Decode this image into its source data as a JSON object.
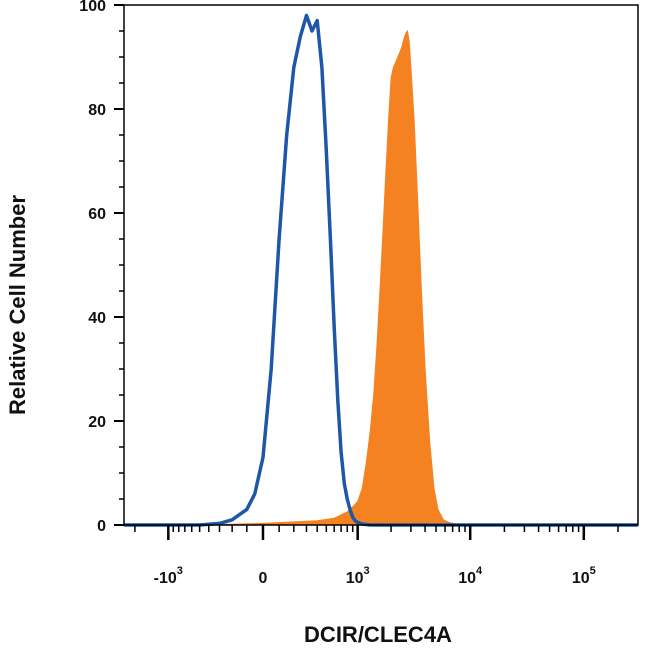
{
  "chart_data": {
    "type": "area",
    "title": "",
    "xlabel": "DCIR/CLEC4A",
    "ylabel": "Relative Cell Number",
    "x_scale": "biexponential",
    "xlim": [
      -2500,
      300000
    ],
    "ylim": [
      0,
      100
    ],
    "y_ticks": [
      0,
      20,
      40,
      60,
      80,
      100
    ],
    "y_tick_labels": [
      "0",
      "20",
      "40",
      "60",
      "80",
      "100"
    ],
    "x_ticks": [
      {
        "value": -1000,
        "base": "-10",
        "exp": "3"
      },
      {
        "value": 0,
        "base": "0",
        "exp": ""
      },
      {
        "value": 1000,
        "base": "10",
        "exp": "3"
      },
      {
        "value": 10000,
        "base": "10",
        "exp": "4"
      },
      {
        "value": 100000,
        "base": "10",
        "exp": "5"
      }
    ],
    "grid": false,
    "legend": "none",
    "series": [
      {
        "style": "filled",
        "color": "#F58220",
        "x": [
          -2500,
          -1000,
          -500,
          0,
          200,
          400,
          600,
          800,
          900,
          1000,
          1100,
          1200,
          1300,
          1400,
          1500,
          1600,
          1700,
          1800,
          1900,
          2000,
          2100,
          2200,
          2300,
          2400,
          2500,
          2600,
          2700,
          2800,
          2900,
          3000,
          3200,
          3400,
          3700,
          4000,
          4400,
          4800,
          5200,
          5800,
          6500,
          8000,
          10000,
          100000,
          300000
        ],
        "y": [
          0,
          0,
          0,
          0.3,
          0.6,
          0.8,
          1.3,
          2.5,
          3.5,
          4.5,
          7,
          12,
          18,
          25,
          35,
          46,
          57,
          68,
          78,
          86,
          88,
          89,
          90,
          91,
          92,
          93.5,
          94.5,
          95,
          93,
          88,
          78,
          65,
          46,
          30,
          16,
          7,
          3,
          1,
          0.5,
          0,
          0,
          0,
          0
        ]
      },
      {
        "style": "outline",
        "color": "#1F57A8",
        "x": [
          -2500,
          -1000,
          -500,
          -300,
          -200,
          -100,
          -50,
          0,
          50,
          100,
          150,
          200,
          250,
          300,
          350,
          400,
          450,
          500,
          550,
          600,
          650,
          700,
          750,
          800,
          850,
          900,
          950,
          1000,
          1100,
          1300,
          2000,
          10000,
          100000,
          300000
        ],
        "y": [
          0,
          0,
          0,
          0.3,
          1,
          3,
          6,
          13,
          30,
          55,
          75,
          88,
          94,
          98,
          95,
          97,
          88,
          72,
          55,
          38,
          24,
          14,
          8,
          5,
          3,
          1.5,
          0.8,
          0.5,
          0.2,
          0,
          0,
          0,
          0,
          0
        ]
      }
    ]
  }
}
